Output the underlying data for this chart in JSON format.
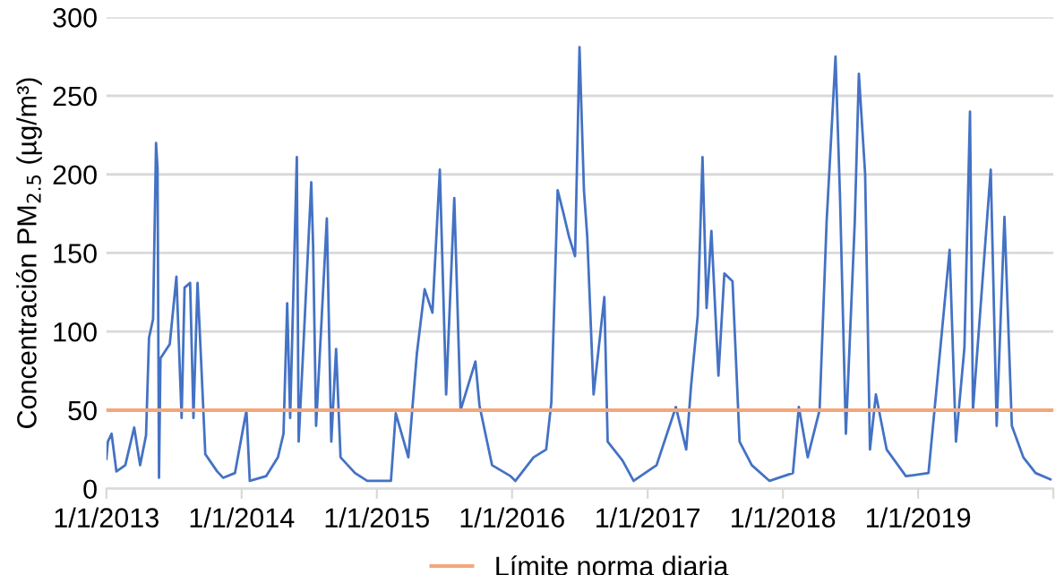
{
  "chart_data": {
    "type": "line",
    "ylabel": "Concentración PM$_{2.5}$ (µg/m³)",
    "x": [
      "2013-01-01",
      "2013-01-05",
      "2013-01-15",
      "2013-01-28",
      "2013-02-21",
      "2013-03-17",
      "2013-04-02",
      "2013-04-18",
      "2013-04-26",
      "2013-05-07",
      "2013-05-15",
      "2013-05-19",
      "2013-05-23",
      "2013-05-27",
      "2013-06-21",
      "2013-07-09",
      "2013-07-23",
      "2013-07-31",
      "2013-08-15",
      "2013-08-24",
      "2013-09-04",
      "2013-09-17",
      "2013-09-25",
      "2013-10-27",
      "2013-11-12",
      "2013-12-14",
      "2014-01-14",
      "2014-01-23",
      "2014-03-08",
      "2014-04-09",
      "2014-04-24",
      "2014-05-04",
      "2014-05-12",
      "2014-05-30",
      "2014-06-04",
      "2014-06-17",
      "2014-07-08",
      "2014-07-13",
      "2014-07-21",
      "2014-08-19",
      "2014-08-31",
      "2014-09-13",
      "2014-09-25",
      "2014-11-03",
      "2014-12-06",
      "2015-01-15",
      "2015-02-08",
      "2015-02-21",
      "2015-03-27",
      "2015-04-19",
      "2015-05-10",
      "2015-05-31",
      "2015-06-20",
      "2015-07-07",
      "2015-07-29",
      "2015-08-15",
      "2015-09-24",
      "2015-10-05",
      "2015-11-08",
      "2015-12-28",
      "2016-01-10",
      "2016-02-28",
      "2016-04-02",
      "2016-04-16",
      "2016-05-03",
      "2016-05-19",
      "2016-06-03",
      "2016-06-19",
      "2016-07-01",
      "2016-07-13",
      "2016-07-22",
      "2016-08-08",
      "2016-09-06",
      "2016-09-15",
      "2016-10-25",
      "2016-11-24",
      "2017-01-25",
      "2017-03-18",
      "2017-04-15",
      "2017-04-28",
      "2017-05-16",
      "2017-05-29",
      "2017-06-09",
      "2017-06-22",
      "2017-07-11",
      "2017-07-27",
      "2017-08-18",
      "2017-09-06",
      "2017-10-09",
      "2017-11-26",
      "2018-01-28",
      "2018-02-13",
      "2018-03-09",
      "2018-04-10",
      "2018-04-29",
      "2018-05-23",
      "2018-06-04",
      "2018-06-20",
      "2018-07-14",
      "2018-07-25",
      "2018-08-11",
      "2018-08-24",
      "2018-09-09",
      "2018-10-08",
      "2018-11-29",
      "2019-01-29",
      "2019-02-15",
      "2019-03-27",
      "2019-04-13",
      "2019-05-06",
      "2019-05-21",
      "2019-05-29",
      "2019-06-23",
      "2019-07-16",
      "2019-08-01",
      "2019-08-22",
      "2019-09-11",
      "2019-10-12",
      "2019-11-14",
      "2019-12-24"
    ],
    "series": [
      {
        "color": "#4472c4",
        "values": [
          19,
          30,
          35,
          11,
          15,
          39,
          15,
          34,
          96,
          108,
          220,
          204,
          7,
          83,
          92,
          135,
          45,
          128,
          131,
          45,
          131,
          64,
          22,
          11,
          7,
          10,
          50,
          5,
          8,
          20,
          35,
          118,
          45,
          211,
          30,
          92,
          195,
          154,
          40,
          172,
          30,
          89,
          20,
          10,
          5,
          5,
          5,
          48,
          20,
          86,
          127,
          112,
          203,
          60,
          185,
          50,
          81,
          53,
          15,
          8,
          5,
          20,
          25,
          55,
          190,
          175,
          160,
          148,
          281,
          190,
          160,
          60,
          122,
          30,
          18,
          5,
          15,
          52,
          25,
          65,
          110,
          211,
          115,
          164,
          72,
          137,
          132,
          30,
          15,
          5,
          10,
          52,
          20,
          50,
          170,
          275,
          187,
          35,
          170,
          264,
          200,
          25,
          60,
          25,
          8,
          10,
          52,
          152,
          30,
          90,
          240,
          50,
          130,
          203,
          40,
          173,
          40,
          20,
          10,
          6
        ]
      }
    ],
    "xlim": [
      "2013-01-01",
      "2020-01-01"
    ],
    "xticks": [
      {
        "value": "2013-01-01",
        "label": "1/1/2013"
      },
      {
        "value": "2014-01-01",
        "label": "1/1/2014"
      },
      {
        "value": "2015-01-01",
        "label": "1/1/2015"
      },
      {
        "value": "2016-01-01",
        "label": "1/1/2016"
      },
      {
        "value": "2017-01-01",
        "label": "1/1/2017"
      },
      {
        "value": "2018-01-01",
        "label": "1/1/2018"
      },
      {
        "value": "2019-01-01",
        "label": "1/1/2019"
      },
      {
        "value": "2020-01-01",
        "label": null
      }
    ],
    "ylim": [
      0,
      300
    ],
    "yticks": [
      0,
      50,
      100,
      150,
      200,
      250,
      300
    ],
    "ref_lines": [
      {
        "axis": "y",
        "value": 50,
        "label": "Límite norma diaria",
        "color": "#f4a77a"
      }
    ],
    "grid": "y",
    "legend": "bottom",
    "marker": "none",
    "line_style": "solid"
  }
}
